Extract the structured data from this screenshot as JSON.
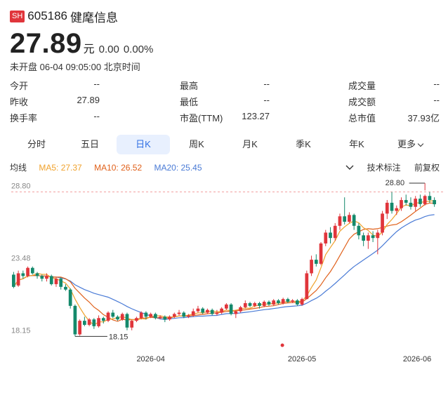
{
  "header": {
    "market": "SH",
    "code": "605186",
    "name": "健麾信息"
  },
  "quote": {
    "price": "27.89",
    "unit": "元",
    "change": "0.00",
    "change_pct": "0.00%"
  },
  "status": "未开盘 06-04 09:05:00 北京时间",
  "stats": [
    [
      {
        "label": "今开",
        "value": "--"
      },
      {
        "label": "最高",
        "value": "--"
      },
      {
        "label": "成交量",
        "value": "--"
      }
    ],
    [
      {
        "label": "昨收",
        "value": "27.89"
      },
      {
        "label": "最低",
        "value": "--"
      },
      {
        "label": "成交额",
        "value": "--"
      }
    ],
    [
      {
        "label": "换手率",
        "value": "--"
      },
      {
        "label": "市盈(TTM)",
        "value": "123.27"
      },
      {
        "label": "总市值",
        "value": "37.93亿"
      }
    ]
  ],
  "tabs": [
    "分时",
    "五日",
    "日K",
    "周K",
    "月K",
    "季K",
    "年K",
    "更多"
  ],
  "active_tab": 2,
  "ma": {
    "title": "均线",
    "ma5": "MA5: 27.37",
    "ma10": "MA10: 26.52",
    "ma20": "MA20: 25.45"
  },
  "tools": {
    "indicator": "技术标注",
    "adjust": "前复权"
  },
  "colors": {
    "up": "#e0353b",
    "down": "#14896b",
    "ma5": "#f0a22c",
    "ma10": "#e0601a",
    "ma20": "#4a7bd6",
    "accent": "#2f6fe4"
  },
  "chart_data": {
    "type": "candlestick",
    "y_ticks": [
      "28.80",
      "23.48",
      "18.15"
    ],
    "ylim": [
      18.15,
      28.8
    ],
    "x_ticks": [
      {
        "label": "2026-04",
        "index": 29
      },
      {
        "label": "2026-05",
        "index": 61
      },
      {
        "label": "2026-06",
        "index": 89
      }
    ],
    "high_label": "28.80",
    "low_label": "18.15",
    "reference_price": 28.8,
    "candles": [
      [
        22.7,
        21.8,
        22.9,
        21.7
      ],
      [
        21.9,
        22.8,
        23.0,
        21.8
      ],
      [
        22.8,
        22.6,
        23.0,
        22.4
      ],
      [
        22.6,
        23.2,
        23.3,
        22.5
      ],
      [
        23.2,
        22.8,
        23.3,
        22.7
      ],
      [
        22.8,
        22.6,
        22.9,
        22.4
      ],
      [
        22.6,
        22.4,
        22.7,
        22.2
      ],
      [
        22.4,
        22.6,
        22.8,
        22.2
      ],
      [
        22.6,
        22.0,
        22.7,
        21.9
      ],
      [
        22.0,
        22.4,
        22.5,
        21.8
      ],
      [
        22.4,
        21.8,
        22.5,
        21.6
      ],
      [
        21.8,
        21.6,
        22.0,
        21.5
      ],
      [
        21.6,
        20.4,
        21.7,
        20.2
      ],
      [
        20.4,
        18.3,
        20.5,
        18.15
      ],
      [
        18.3,
        19.3,
        19.4,
        18.2
      ],
      [
        19.3,
        19.0,
        19.6,
        18.9
      ],
      [
        19.0,
        19.4,
        19.5,
        18.9
      ],
      [
        19.4,
        18.9,
        19.5,
        18.7
      ],
      [
        18.9,
        19.5,
        19.7,
        18.8
      ],
      [
        19.5,
        19.3,
        19.6,
        19.1
      ],
      [
        19.3,
        19.9,
        20.0,
        19.2
      ],
      [
        19.9,
        19.6,
        20.1,
        19.5
      ],
      [
        19.6,
        19.4,
        19.7,
        19.3
      ],
      [
        19.4,
        19.8,
        19.9,
        19.3
      ],
      [
        19.8,
        18.8,
        19.9,
        18.6
      ],
      [
        18.8,
        19.3,
        19.4,
        18.6
      ],
      [
        19.3,
        19.5,
        19.6,
        19.2
      ],
      [
        19.5,
        19.9,
        20.0,
        19.4
      ],
      [
        19.9,
        19.6,
        20.0,
        19.4
      ],
      [
        19.6,
        19.8,
        19.9,
        19.5
      ],
      [
        19.8,
        19.5,
        19.9,
        19.4
      ],
      [
        19.5,
        19.6,
        19.7,
        19.4
      ],
      [
        19.6,
        19.4,
        19.7,
        19.2
      ],
      [
        19.4,
        19.6,
        19.7,
        19.3
      ],
      [
        19.6,
        19.8,
        19.9,
        19.5
      ],
      [
        19.8,
        19.9,
        20.1,
        19.7
      ],
      [
        19.9,
        19.6,
        20.0,
        19.5
      ],
      [
        19.6,
        19.7,
        19.8,
        19.5
      ],
      [
        19.7,
        20.0,
        20.2,
        19.6
      ],
      [
        20.0,
        20.2,
        20.4,
        19.9
      ],
      [
        20.2,
        19.9,
        20.3,
        19.8
      ],
      [
        19.9,
        20.1,
        20.2,
        19.8
      ],
      [
        20.1,
        19.8,
        20.2,
        19.7
      ],
      [
        19.8,
        19.9,
        20.1,
        19.7
      ],
      [
        19.9,
        20.2,
        20.3,
        19.8
      ],
      [
        20.2,
        20.5,
        20.6,
        20.1
      ],
      [
        20.5,
        19.8,
        20.6,
        19.7
      ],
      [
        19.8,
        20.0,
        20.1,
        19.5
      ],
      [
        20.0,
        20.3,
        20.4,
        19.9
      ],
      [
        20.3,
        20.6,
        20.8,
        20.2
      ],
      [
        20.6,
        20.4,
        20.7,
        20.3
      ],
      [
        20.4,
        20.6,
        20.7,
        20.3
      ],
      [
        20.6,
        20.4,
        20.7,
        20.2
      ],
      [
        20.4,
        20.7,
        20.8,
        20.3
      ],
      [
        20.7,
        20.5,
        20.8,
        20.4
      ],
      [
        20.5,
        20.8,
        20.9,
        20.4
      ],
      [
        20.8,
        20.6,
        20.9,
        20.5
      ],
      [
        20.6,
        20.9,
        21.0,
        20.5
      ],
      [
        20.9,
        20.7,
        21.0,
        20.6
      ],
      [
        20.7,
        20.8,
        20.9,
        20.6
      ],
      [
        20.8,
        20.5,
        20.9,
        20.4
      ],
      [
        20.5,
        20.9,
        21.0,
        20.4
      ],
      [
        20.9,
        22.8,
        23.0,
        20.9
      ],
      [
        22.8,
        23.8,
        24.1,
        22.6
      ],
      [
        23.8,
        23.5,
        24.2,
        23.3
      ],
      [
        23.5,
        25.0,
        25.1,
        23.4
      ],
      [
        25.0,
        25.8,
        26.0,
        24.8
      ],
      [
        25.8,
        25.4,
        26.2,
        25.0
      ],
      [
        25.4,
        26.3,
        26.5,
        25.2
      ],
      [
        26.3,
        27.0,
        27.2,
        26.0
      ],
      [
        27.0,
        26.6,
        28.4,
        26.4
      ],
      [
        26.6,
        27.1,
        27.3,
        26.5
      ],
      [
        27.1,
        26.3,
        27.2,
        26.0
      ],
      [
        26.3,
        25.6,
        26.5,
        25.3
      ],
      [
        25.6,
        25.2,
        25.8,
        24.8
      ],
      [
        25.2,
        25.6,
        25.8,
        24.6
      ],
      [
        25.6,
        25.4,
        25.9,
        25.1
      ],
      [
        25.4,
        25.8,
        26.0,
        24.2
      ],
      [
        25.8,
        27.2,
        27.4,
        25.6
      ],
      [
        27.2,
        28.0,
        28.2,
        26.8
      ],
      [
        28.0,
        27.4,
        28.8,
        27.2
      ],
      [
        27.4,
        27.6,
        27.8,
        27.1
      ],
      [
        27.6,
        28.2,
        28.4,
        27.4
      ],
      [
        28.2,
        28.0,
        28.6,
        27.8
      ],
      [
        28.0,
        27.7,
        28.4,
        27.5
      ],
      [
        27.7,
        28.3,
        28.5,
        27.4
      ],
      [
        28.3,
        27.9,
        28.6,
        27.7
      ],
      [
        27.9,
        28.5,
        28.6,
        27.8
      ],
      [
        28.5,
        28.2,
        28.8,
        28.0
      ],
      [
        28.2,
        27.89,
        28.4,
        27.7
      ]
    ],
    "highlight": {
      "marker_color": "#e0353b"
    }
  }
}
